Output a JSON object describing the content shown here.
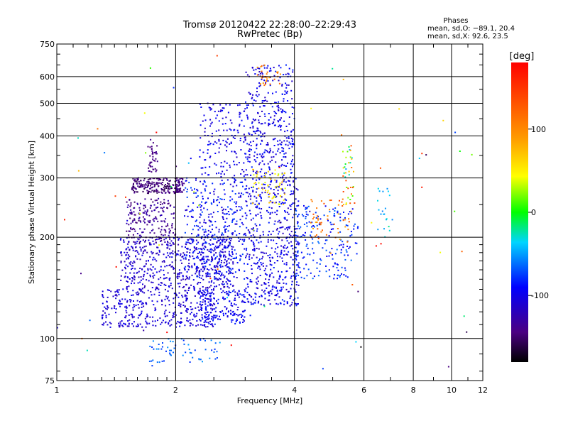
{
  "chart_data": {
    "type": "scatter",
    "title": "Tromsø 20120422 22:28:00–22:29:43",
    "subtitle": "RwPretec (Bp)",
    "xlabel": "Frequency [MHz]",
    "ylabel": "Stationary phase Virtual Height [km]",
    "x_scale": "log",
    "y_scale": "log",
    "xlim": [
      1,
      12
    ],
    "ylim": [
      75,
      750
    ],
    "grid": true,
    "x_ticks": [
      1,
      2,
      4,
      6,
      8,
      10,
      12
    ],
    "x_tick_labels": [
      "1",
      "2",
      "4",
      "6",
      "8",
      "10",
      "12"
    ],
    "y_ticks": [
      75,
      100,
      200,
      300,
      400,
      500,
      600,
      750
    ],
    "y_tick_labels": [
      "75",
      "100",
      "200",
      "300",
      "400",
      "500",
      "600",
      "750"
    ],
    "legend": {
      "title": "Phases",
      "line1": "mean, sd,O: −89.1, 20.4",
      "line2": "mean, sd,X:  92.6, 23.5"
    },
    "colorbar": {
      "label": "[deg]",
      "range": [
        -180,
        180
      ],
      "ticks": [
        100,
        0,
        -100
      ],
      "tick_labels": [
        "100",
        "0",
        "-100"
      ]
    },
    "clusters": [
      {
        "x": [
          1.55,
          2.05
        ],
        "y": [
          270,
          300
        ],
        "phase": [
          -160,
          -135
        ],
        "n": 200
      },
      {
        "x": [
          1.7,
          1.8
        ],
        "y": [
          310,
          390
        ],
        "phase": [
          -150,
          -135
        ],
        "n": 40
      },
      {
        "x": [
          2.0,
          2.1
        ],
        "y": [
          270,
          300
        ],
        "phase": [
          -150,
          -130
        ],
        "n": 40
      },
      {
        "x": [
          1.5,
          2.0
        ],
        "y": [
          190,
          260
        ],
        "phase": [
          -150,
          -120
        ],
        "n": 200
      },
      {
        "x": [
          1.45,
          2.8
        ],
        "y": [
          140,
          200
        ],
        "phase": [
          -125,
          -95
        ],
        "n": 520
      },
      {
        "x": [
          1.3,
          2.5
        ],
        "y": [
          108,
          140
        ],
        "phase": [
          -120,
          -95
        ],
        "n": 360
      },
      {
        "x": [
          2.3,
          3.0
        ],
        "y": [
          110,
          140
        ],
        "phase": [
          -110,
          -80
        ],
        "n": 180
      },
      {
        "x": [
          2.1,
          3.0
        ],
        "y": [
          150,
          300
        ],
        "phase": [
          -115,
          -70
        ],
        "n": 420
      },
      {
        "x": [
          2.3,
          3.0
        ],
        "y": [
          300,
          500
        ],
        "phase": [
          -115,
          -85
        ],
        "n": 150
      },
      {
        "x": [
          3.0,
          4.1
        ],
        "y": [
          125,
          300
        ],
        "phase": [
          -120,
          -80
        ],
        "n": 520
      },
      {
        "x": [
          3.0,
          4.0
        ],
        "y": [
          300,
          650
        ],
        "phase": [
          -120,
          -80
        ],
        "n": 360
      },
      {
        "x": [
          3.1,
          3.8
        ],
        "y": [
          250,
          320
        ],
        "phase": [
          30,
          80
        ],
        "n": 60
      },
      {
        "x": [
          3.2,
          3.7
        ],
        "y": [
          560,
          650
        ],
        "phase": [
          80,
          140
        ],
        "n": 30
      },
      {
        "x": [
          4.0,
          5.8
        ],
        "y": [
          150,
          250
        ],
        "phase": [
          -100,
          -60
        ],
        "n": 200
      },
      {
        "x": [
          4.3,
          5.6
        ],
        "y": [
          190,
          260
        ],
        "phase": [
          80,
          140
        ],
        "n": 50
      },
      {
        "x": [
          5.3,
          5.7
        ],
        "y": [
          250,
          380
        ],
        "phase": [
          -60,
          140
        ],
        "n": 40
      },
      {
        "x": [
          1.7,
          2.6
        ],
        "y": [
          85,
          100
        ],
        "phase": [
          -80,
          -50
        ],
        "n": 60
      },
      {
        "x": [
          6.5,
          7.1
        ],
        "y": [
          200,
          280
        ],
        "phase": [
          -60,
          -30
        ],
        "n": 20
      },
      {
        "x": [
          1.0,
          11.5
        ],
        "y": [
          80,
          700
        ],
        "phase": [
          -180,
          180
        ],
        "n": 80
      }
    ]
  }
}
